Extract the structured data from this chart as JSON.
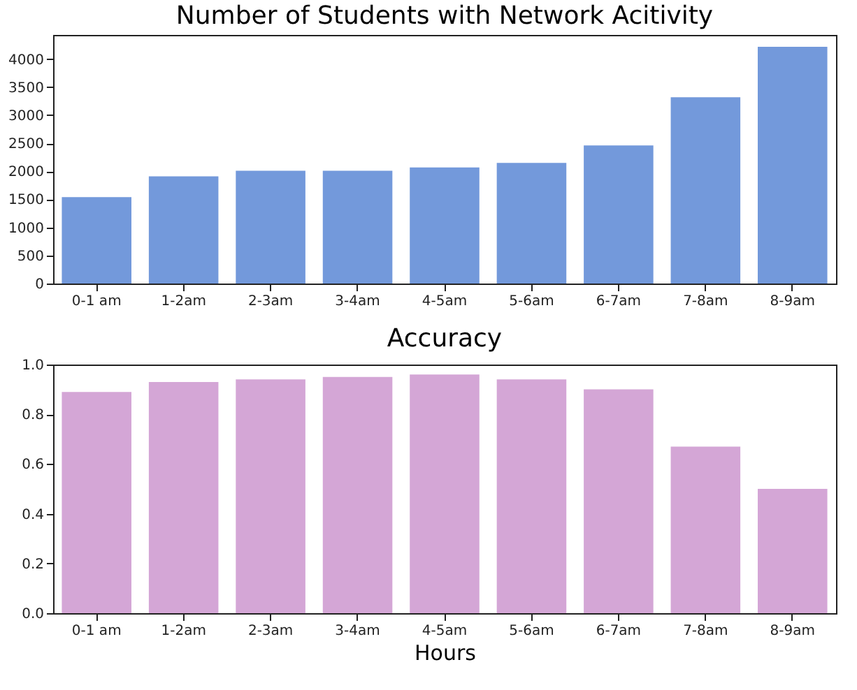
{
  "chart_data": [
    {
      "type": "bar",
      "title": "Number of Students with Network Acitivity",
      "categories": [
        "0-1 am",
        "1-2am",
        "2-3am",
        "3-4am",
        "4-5am",
        "5-6am",
        "6-7am",
        "7-8am",
        "8-9am"
      ],
      "values": [
        1540,
        1910,
        2010,
        2010,
        2070,
        2150,
        2460,
        3320,
        4220
      ],
      "color": "#7399db",
      "ylim": [
        0,
        4430
      ],
      "yticks": [
        0,
        500,
        1000,
        1500,
        2000,
        2500,
        3000,
        3500,
        4000
      ],
      "grid": false
    },
    {
      "type": "bar",
      "title": "Accuracy",
      "xlabel": "Hours",
      "categories": [
        "0-1 am",
        "1-2am",
        "2-3am",
        "3-4am",
        "4-5am",
        "5-6am",
        "6-7am",
        "7-8am",
        "8-9am"
      ],
      "values": [
        0.89,
        0.93,
        0.94,
        0.95,
        0.96,
        0.94,
        0.9,
        0.67,
        0.5
      ],
      "color": "#d4a6d6",
      "ylim": [
        0,
        1
      ],
      "yticks": [
        {
          "value": 0,
          "label": "0.0"
        },
        {
          "value": 0.2,
          "label": "0.2"
        },
        {
          "value": 0.4,
          "label": "0.4"
        },
        {
          "value": 0.6,
          "label": "0.6"
        },
        {
          "value": 0.8,
          "label": "0.8"
        },
        {
          "value": 1,
          "label": "1.0"
        }
      ],
      "grid": false
    }
  ]
}
